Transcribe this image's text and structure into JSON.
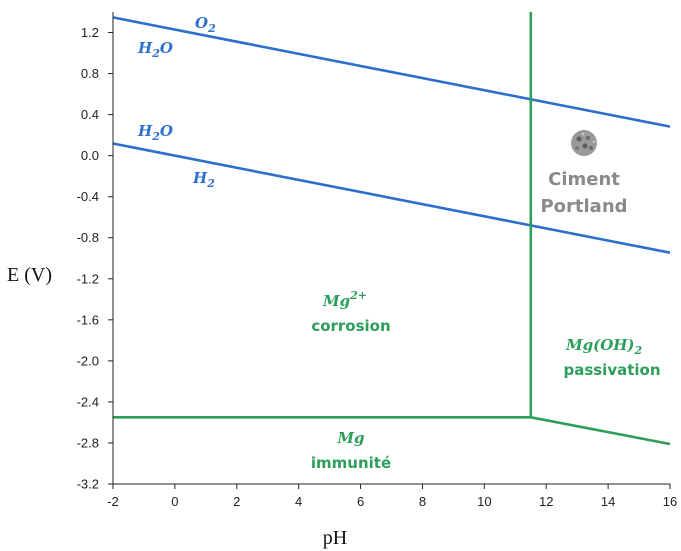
{
  "chart_data": {
    "type": "line",
    "title": "",
    "xlabel": "pH",
    "ylabel": "E (V)",
    "xlim": [
      -2,
      16
    ],
    "ylim": [
      -3.2,
      1.4
    ],
    "x_ticks": [
      "-2",
      "0",
      "2",
      "4",
      "6",
      "8",
      "10",
      "12",
      "14",
      "16"
    ],
    "y_ticks": [
      "1.2",
      "0.8",
      "0.4",
      "0.0",
      "-0.4",
      "-0.8",
      "-1.2",
      "-1.6",
      "-2.0",
      "-2.4",
      "-2.8",
      "-3.2"
    ],
    "grid": false,
    "colors": {
      "water": "#2c6fcf",
      "magnesium": "#2e9e5b",
      "ciment": "#8a8a8a"
    },
    "series": [
      {
        "id": "o2-h2o",
        "color": "#2c6fcf",
        "points": [
          [
            -2,
            1.347
          ],
          [
            16,
            0.283
          ]
        ]
      },
      {
        "id": "h2o-h2",
        "color": "#2c6fcf",
        "points": [
          [
            -2,
            0.118
          ],
          [
            16,
            -0.946
          ]
        ]
      },
      {
        "id": "mg-immunity",
        "color": "#2e9e5b",
        "points": [
          [
            -2,
            -2.55
          ],
          [
            11.5,
            -2.55
          ],
          [
            16,
            -2.81
          ]
        ]
      },
      {
        "id": "mg-passivation",
        "color": "#2e9e5b",
        "points": [
          [
            11.5,
            1.4
          ],
          [
            11.5,
            -2.55
          ]
        ]
      }
    ],
    "annotations": {
      "o2": {
        "base": "O",
        "sub": "2"
      },
      "h2o_top": {
        "base": "H",
        "sub": "2",
        "tail": "O"
      },
      "h2o_bottom": {
        "base": "H",
        "sub": "2",
        "tail": "O"
      },
      "h2": {
        "base": "H",
        "sub": "2"
      },
      "mg_ion": {
        "base": "Mg",
        "sup": "2+"
      },
      "corrosion": "corrosion",
      "mg_oh": {
        "base": "Mg",
        "mid": "(OH)",
        "sub": "2"
      },
      "passivation": "passivation",
      "mg": "Mg",
      "immunite": "immunité",
      "ciment_line1": "Ciment",
      "ciment_line2": "Portland"
    }
  }
}
